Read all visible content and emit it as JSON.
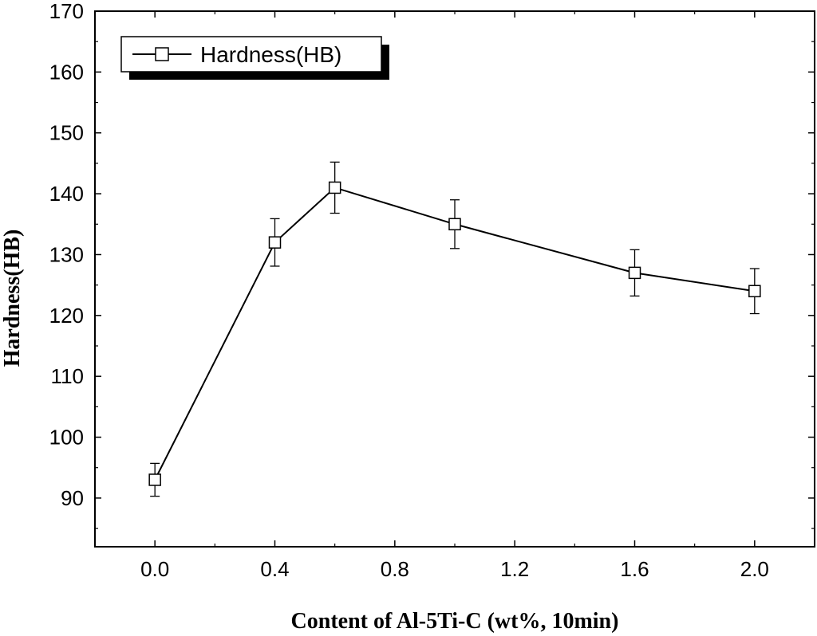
{
  "chart_data": {
    "type": "line",
    "title": "",
    "xlabel": "Content of Al-5Ti-C (wt%, 10min)",
    "ylabel": "Hardness(HB)",
    "xlim": [
      -0.2,
      2.2
    ],
    "ylim": [
      82,
      170
    ],
    "x_ticks": [
      "0.0",
      "0.4",
      "0.8",
      "1.2",
      "1.6",
      "2.0"
    ],
    "y_ticks": [
      "90",
      "100",
      "110",
      "120",
      "130",
      "140",
      "150",
      "160",
      "170"
    ],
    "grid": false,
    "legend": {
      "position": "top-left",
      "label": "Hardness(HB)"
    },
    "series": [
      {
        "name": "Hardness(HB)",
        "marker": "open-square",
        "color": "#000000",
        "x": [
          0.0,
          0.4,
          0.6,
          1.0,
          1.6,
          2.0
        ],
        "y": [
          93,
          132,
          141,
          135,
          127,
          124
        ],
        "error": [
          2.7,
          3.9,
          4.2,
          4.0,
          3.8,
          3.7
        ]
      }
    ]
  }
}
